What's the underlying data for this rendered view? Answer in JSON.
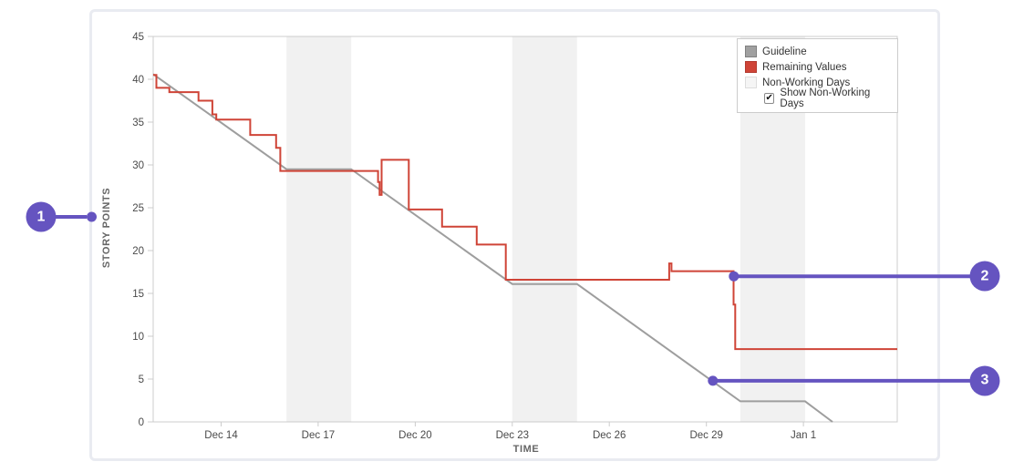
{
  "page": {
    "background": "#ffffff"
  },
  "legend": {
    "items": [
      {
        "label": "Guideline",
        "swatch_color": "#a0a0a0",
        "swatch_border": "#808080"
      },
      {
        "label": "Remaining Values",
        "swatch_color": "#cf4437",
        "swatch_border": "#b23a2f"
      },
      {
        "label": "Non-Working Days",
        "swatch_color": "#f5f5f5",
        "swatch_border": "#dddddd"
      }
    ],
    "checkbox": {
      "label": "Show Non-Working Days",
      "checked": true
    }
  },
  "chart_data": {
    "type": "line",
    "title": "",
    "xlabel": "TIME",
    "ylabel": "STORY POINTS",
    "x_axis": {
      "unit": "days-from-sprint-start",
      "range": [
        0,
        23
      ],
      "ticks": [
        {
          "pos": 2.1,
          "label": "Dec 14"
        },
        {
          "pos": 5.1,
          "label": "Dec 17"
        },
        {
          "pos": 8.1,
          "label": "Dec 20"
        },
        {
          "pos": 11.1,
          "label": "Dec 23"
        },
        {
          "pos": 14.1,
          "label": "Dec 26"
        },
        {
          "pos": 17.1,
          "label": "Dec 29"
        },
        {
          "pos": 20.1,
          "label": "Jan 1"
        }
      ]
    },
    "y_axis": {
      "range": [
        0,
        45
      ],
      "tick_step": 5,
      "ticks": [
        0,
        5,
        10,
        15,
        20,
        25,
        30,
        35,
        40,
        45
      ]
    },
    "grid": false,
    "legend_position": "top-right",
    "non_working_days_bands": [
      [
        4.12,
        6.12
      ],
      [
        11.1,
        13.1
      ],
      [
        18.15,
        20.15
      ]
    ],
    "series": [
      {
        "name": "Guideline",
        "color": "#9e9e9e",
        "points": [
          [
            0,
            40.6
          ],
          [
            4.12,
            29.5
          ],
          [
            6.12,
            29.5
          ],
          [
            11.1,
            16.1
          ],
          [
            13.1,
            16.1
          ],
          [
            18.15,
            2.4
          ],
          [
            20.15,
            2.4
          ],
          [
            21.0,
            0
          ]
        ]
      },
      {
        "name": "Remaining Values",
        "color": "#cf4437",
        "points": [
          [
            0,
            40.5
          ],
          [
            0.1,
            40.5
          ],
          [
            0.1,
            39
          ],
          [
            0.5,
            39
          ],
          [
            0.5,
            38.5
          ],
          [
            1.4,
            38.5
          ],
          [
            1.4,
            37.5
          ],
          [
            1.83,
            37.5
          ],
          [
            1.83,
            35.9
          ],
          [
            1.95,
            35.9
          ],
          [
            1.95,
            35.3
          ],
          [
            3.0,
            35.3
          ],
          [
            3.0,
            33.5
          ],
          [
            3.8,
            33.5
          ],
          [
            3.8,
            32
          ],
          [
            3.93,
            32
          ],
          [
            3.93,
            29.3
          ],
          [
            6.95,
            29.3
          ],
          [
            6.95,
            28
          ],
          [
            7.0,
            28
          ],
          [
            7.0,
            26.5
          ],
          [
            7.06,
            26.5
          ],
          [
            7.06,
            30.6
          ],
          [
            7.9,
            30.6
          ],
          [
            7.9,
            24.8
          ],
          [
            8.93,
            24.8
          ],
          [
            8.93,
            22.8
          ],
          [
            10.0,
            22.8
          ],
          [
            10.0,
            20.7
          ],
          [
            10.9,
            20.7
          ],
          [
            10.9,
            16.6
          ],
          [
            15.95,
            16.6
          ],
          [
            15.95,
            18.5
          ],
          [
            16.02,
            18.5
          ],
          [
            16.02,
            17.6
          ],
          [
            17.94,
            17.6
          ],
          [
            17.94,
            13.7
          ],
          [
            17.99,
            13.7
          ],
          [
            17.99,
            8.5
          ],
          [
            23,
            8.5
          ]
        ]
      }
    ]
  },
  "annotations": [
    {
      "label": "1",
      "points_to": "story-points-axis-label"
    },
    {
      "label": "2",
      "points_to": "remaining-values-line",
      "at": {
        "day": 17.95,
        "value": 17.0
      }
    },
    {
      "label": "3",
      "points_to": "guideline",
      "at": {
        "day": 17.3,
        "value": 4.8
      }
    }
  ],
  "colors": {
    "annotation_purple": "#6554c0",
    "remaining_values": "#cf4437",
    "guideline": "#9e9e9e",
    "non_working_band": "#f1f1f1",
    "plot_border": "#cccccc",
    "tick_text": "#4a4a4a",
    "axis_label_text": "#666666"
  }
}
